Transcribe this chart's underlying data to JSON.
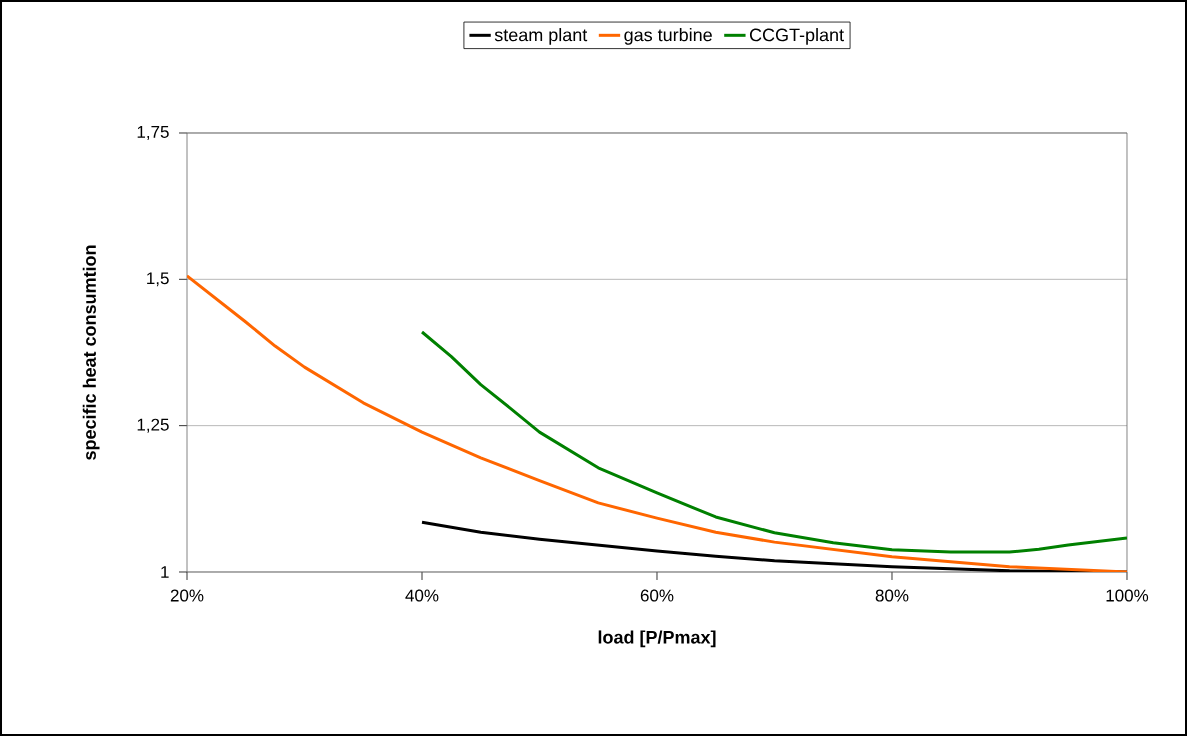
{
  "chart_data": {
    "type": "line",
    "xlabel": "load [P/Pmax]",
    "ylabel": "specific heat consumtion",
    "xlim": [
      0.2,
      1.0
    ],
    "xticks": [
      {
        "value": 0.2,
        "label": "20%"
      },
      {
        "value": 0.4,
        "label": "40%"
      },
      {
        "value": 0.6,
        "label": "60%"
      },
      {
        "value": 0.8,
        "label": "80%"
      },
      {
        "value": 1.0,
        "label": "100%"
      }
    ],
    "ylim": [
      1,
      1.75
    ],
    "yticks": [
      1,
      {
        "value": 1.25,
        "label": "1,25"
      },
      {
        "value": 1.5,
        "label": "1,5"
      },
      {
        "value": 1.75,
        "label": "1,75"
      }
    ],
    "grid": "y",
    "legend": "top",
    "series": [
      {
        "name": "steam plant",
        "color": "#000000",
        "x": [
          0.4,
          0.45,
          0.5,
          0.55,
          0.6,
          0.65,
          0.7,
          0.8,
          0.9,
          1.0
        ],
        "values": [
          1.085,
          1.068,
          1.056,
          1.046,
          1.036,
          1.027,
          1.019,
          1.009,
          1.002,
          1.0
        ]
      },
      {
        "name": "gas turbine",
        "color": "#ff6600",
        "x": [
          0.2,
          0.25,
          0.275,
          0.3,
          0.35,
          0.4,
          0.45,
          0.5,
          0.55,
          0.6,
          0.65,
          0.7,
          0.8,
          0.9,
          1.0
        ],
        "values": [
          1.506,
          1.427,
          1.386,
          1.35,
          1.289,
          1.239,
          1.195,
          1.156,
          1.118,
          1.092,
          1.068,
          1.051,
          1.026,
          1.009,
          1.0
        ]
      },
      {
        "name": "CCGT-plant",
        "color": "#008000",
        "x": [
          0.4,
          0.425,
          0.45,
          0.475,
          0.5,
          0.55,
          0.6,
          0.65,
          0.7,
          0.75,
          0.8,
          0.85,
          0.9,
          0.925,
          0.95,
          1.0
        ],
        "values": [
          1.41,
          1.368,
          1.32,
          1.28,
          1.239,
          1.178,
          1.135,
          1.094,
          1.067,
          1.05,
          1.038,
          1.034,
          1.034,
          1.039,
          1.046,
          1.058
        ]
      }
    ]
  }
}
